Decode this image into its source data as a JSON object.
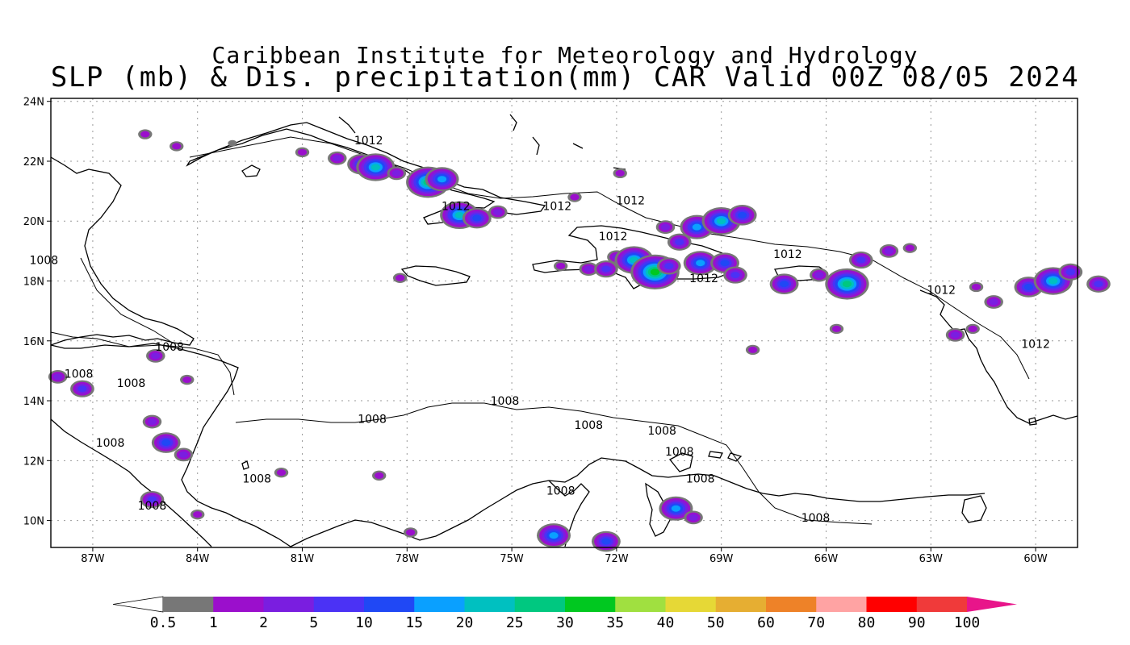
{
  "title": {
    "line1": "Caribbean Institute for Meteorology and Hydrology",
    "line2": "SLP (mb) & Dis. precipitation(mm) CAR Valid 00Z 08/05 2024"
  },
  "lat_labels": [
    "24N",
    "22N",
    "20N",
    "18N",
    "16N",
    "14N",
    "12N",
    "10N"
  ],
  "lon_labels": [
    "87W",
    "84W",
    "81W",
    "78W",
    "75W",
    "72W",
    "69W",
    "66W",
    "63W",
    "60W"
  ],
  "colorbar": {
    "colors": [
      "#777777",
      "#9b0fcc",
      "#7a1ee0",
      "#4b32f5",
      "#2048f5",
      "#0aa0ff",
      "#00c0c0",
      "#00c880",
      "#00c820",
      "#a0e040",
      "#e6d836",
      "#e6ae32",
      "#ee8228",
      "#ffa3a3",
      "#ff0000",
      "#f03a3a"
    ],
    "labels": [
      "0.5",
      "1",
      "2",
      "5",
      "10",
      "15",
      "20",
      "25",
      "30",
      "35",
      "40",
      "50",
      "60",
      "70",
      "80",
      "90",
      "100"
    ],
    "low_color": "#ffffff",
    "high_color": "#e8158a"
  },
  "contour_labels": [
    {
      "text": "1012",
      "lon": -79.1,
      "lat": 22.7
    },
    {
      "text": "1012",
      "lon": -76.6,
      "lat": 20.5
    },
    {
      "text": "1012",
      "lon": -73.7,
      "lat": 20.5
    },
    {
      "text": "1012",
      "lon": -71.6,
      "lat": 20.7
    },
    {
      "text": "1012",
      "lon": -72.1,
      "lat": 19.5
    },
    {
      "text": "1012",
      "lon": -67.1,
      "lat": 18.9
    },
    {
      "text": "1012",
      "lon": -69.5,
      "lat": 18.1
    },
    {
      "text": "1012",
      "lon": -62.7,
      "lat": 17.7
    },
    {
      "text": "1012",
      "lon": -60.0,
      "lat": 15.9
    },
    {
      "text": "1008",
      "lon": -88.4,
      "lat": 18.7
    },
    {
      "text": "1008",
      "lon": -84.8,
      "lat": 15.8
    },
    {
      "text": "1008",
      "lon": -87.4,
      "lat": 14.9
    },
    {
      "text": "1008",
      "lon": -85.9,
      "lat": 14.6
    },
    {
      "text": "1008",
      "lon": -86.5,
      "lat": 12.6
    },
    {
      "text": "1008",
      "lon": -85.3,
      "lat": 10.5
    },
    {
      "text": "1008",
      "lon": -82.3,
      "lat": 11.4
    },
    {
      "text": "1008",
      "lon": -79.0,
      "lat": 13.4
    },
    {
      "text": "1008",
      "lon": -75.2,
      "lat": 14.0
    },
    {
      "text": "1008",
      "lon": -72.8,
      "lat": 13.2
    },
    {
      "text": "1008",
      "lon": -70.7,
      "lat": 13.0
    },
    {
      "text": "1008",
      "lon": -69.6,
      "lat": 11.4
    },
    {
      "text": "1008",
      "lon": -73.6,
      "lat": 11.0
    },
    {
      "text": "1008",
      "lon": -66.3,
      "lat": 10.1
    },
    {
      "text": "1008",
      "lon": -70.2,
      "lat": 12.3
    }
  ],
  "precip_cells": [
    {
      "lon": -85.5,
      "lat": 22.9,
      "level": 1
    },
    {
      "lon": -84.6,
      "lat": 22.5,
      "level": 1
    },
    {
      "lon": -83.0,
      "lat": 22.6,
      "level": 0
    },
    {
      "lon": -81.0,
      "lat": 22.3,
      "level": 1
    },
    {
      "lon": -80.0,
      "lat": 22.1,
      "level": 2
    },
    {
      "lon": -79.3,
      "lat": 21.9,
      "level": 4
    },
    {
      "lon": -78.9,
      "lat": 21.8,
      "level": 6
    },
    {
      "lon": -78.3,
      "lat": 21.6,
      "level": 2
    },
    {
      "lon": -77.4,
      "lat": 21.3,
      "level": 7
    },
    {
      "lon": -77.0,
      "lat": 21.4,
      "level": 5
    },
    {
      "lon": -76.5,
      "lat": 20.2,
      "level": 6
    },
    {
      "lon": -76.0,
      "lat": 20.1,
      "level": 4
    },
    {
      "lon": -75.4,
      "lat": 20.3,
      "level": 2
    },
    {
      "lon": -73.2,
      "lat": 20.8,
      "level": 1
    },
    {
      "lon": -71.9,
      "lat": 21.6,
      "level": 1
    },
    {
      "lon": -70.6,
      "lat": 19.8,
      "level": 2
    },
    {
      "lon": -69.7,
      "lat": 19.8,
      "level": 5
    },
    {
      "lon": -69.0,
      "lat": 20.0,
      "level": 6
    },
    {
      "lon": -68.4,
      "lat": 20.2,
      "level": 4
    },
    {
      "lon": -70.2,
      "lat": 19.3,
      "level": 3
    },
    {
      "lon": -72.0,
      "lat": 18.8,
      "level": 2
    },
    {
      "lon": -71.5,
      "lat": 18.7,
      "level": 6
    },
    {
      "lon": -70.9,
      "lat": 18.3,
      "level": 8
    },
    {
      "lon": -70.5,
      "lat": 18.5,
      "level": 3
    },
    {
      "lon": -69.6,
      "lat": 18.6,
      "level": 5
    },
    {
      "lon": -68.9,
      "lat": 18.6,
      "level": 4
    },
    {
      "lon": -68.6,
      "lat": 18.2,
      "level": 3
    },
    {
      "lon": -73.6,
      "lat": 18.5,
      "level": 1
    },
    {
      "lon": -72.8,
      "lat": 18.4,
      "level": 2
    },
    {
      "lon": -72.3,
      "lat": 18.4,
      "level": 3
    },
    {
      "lon": -78.2,
      "lat": 18.1,
      "level": 1
    },
    {
      "lon": -67.2,
      "lat": 17.9,
      "level": 4
    },
    {
      "lon": -66.2,
      "lat": 18.2,
      "level": 2
    },
    {
      "lon": -65.4,
      "lat": 17.9,
      "level": 7
    },
    {
      "lon": -65.0,
      "lat": 18.7,
      "level": 3
    },
    {
      "lon": -64.2,
      "lat": 19.0,
      "level": 2
    },
    {
      "lon": -63.6,
      "lat": 19.1,
      "level": 1
    },
    {
      "lon": -61.7,
      "lat": 17.8,
      "level": 1
    },
    {
      "lon": -61.2,
      "lat": 17.3,
      "level": 2
    },
    {
      "lon": -60.2,
      "lat": 17.8,
      "level": 4
    },
    {
      "lon": -59.5,
      "lat": 18.0,
      "level": 6
    },
    {
      "lon": -59.0,
      "lat": 18.3,
      "level": 3
    },
    {
      "lon": -58.2,
      "lat": 17.9,
      "level": 3
    },
    {
      "lon": -62.3,
      "lat": 16.2,
      "level": 2
    },
    {
      "lon": -61.8,
      "lat": 16.4,
      "level": 1
    },
    {
      "lon": -65.7,
      "lat": 16.4,
      "level": 1
    },
    {
      "lon": -68.1,
      "lat": 15.7,
      "level": 1
    },
    {
      "lon": -85.2,
      "lat": 15.5,
      "level": 2
    },
    {
      "lon": -88.0,
      "lat": 14.8,
      "level": 2
    },
    {
      "lon": -87.3,
      "lat": 14.4,
      "level": 3
    },
    {
      "lon": -85.3,
      "lat": 13.3,
      "level": 2
    },
    {
      "lon": -84.3,
      "lat": 14.7,
      "level": 1
    },
    {
      "lon": -84.9,
      "lat": 12.6,
      "level": 4
    },
    {
      "lon": -84.4,
      "lat": 12.2,
      "level": 2
    },
    {
      "lon": -85.3,
      "lat": 10.7,
      "level": 3
    },
    {
      "lon": -84.0,
      "lat": 10.2,
      "level": 1
    },
    {
      "lon": -81.6,
      "lat": 11.6,
      "level": 1
    },
    {
      "lon": -78.8,
      "lat": 11.5,
      "level": 1
    },
    {
      "lon": -73.8,
      "lat": 9.5,
      "level": 5
    },
    {
      "lon": -72.3,
      "lat": 9.3,
      "level": 4
    },
    {
      "lon": -70.3,
      "lat": 10.4,
      "level": 5
    },
    {
      "lon": -69.8,
      "lat": 10.1,
      "level": 2
    },
    {
      "lon": -77.9,
      "lat": 9.6,
      "level": 1
    }
  ]
}
